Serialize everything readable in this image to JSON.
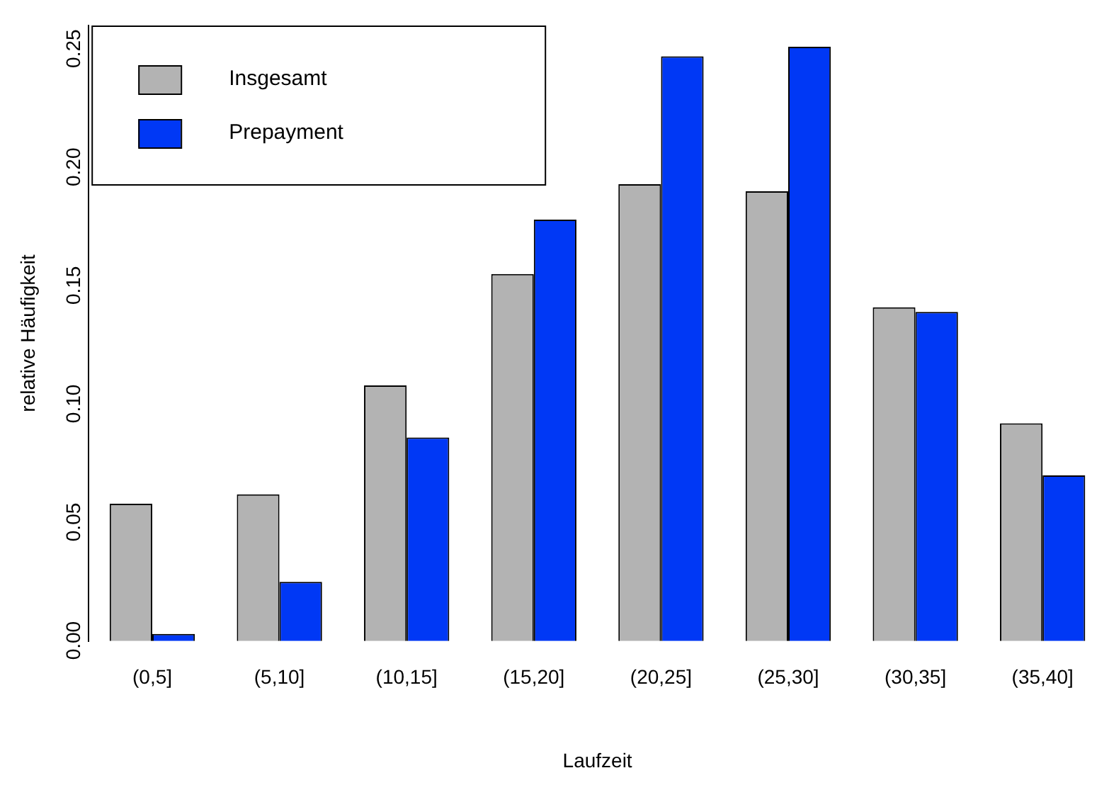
{
  "chart_data": {
    "type": "bar",
    "xlabel": "Laufzeit",
    "ylabel": "relative Häufigkeit",
    "categories": [
      "(0,5]",
      "(5,10]",
      "(10,15]",
      "(15,20]",
      "(20,25]",
      "(25,30]",
      "(30,35]",
      "(35,40]"
    ],
    "series": [
      {
        "name": "Insgesamt",
        "color": "#b3b3b3",
        "values": [
          0.058,
          0.062,
          0.108,
          0.155,
          0.193,
          0.19,
          0.141,
          0.092
        ]
      },
      {
        "name": "Prepayment",
        "color": "#0038f5",
        "values": [
          0.003,
          0.025,
          0.086,
          0.178,
          0.247,
          0.251,
          0.139,
          0.07
        ]
      }
    ],
    "ylim": [
      0,
      0.26
    ],
    "yticks": [
      {
        "value": 0,
        "label": "0.00"
      },
      {
        "value": 0.05,
        "label": "0.05"
      },
      {
        "value": 0.1,
        "label": "0.10"
      },
      {
        "value": 0.15,
        "label": "0.15"
      },
      {
        "value": 0.2,
        "label": "0.20"
      },
      {
        "value": 0.25,
        "label": "0.25"
      }
    ],
    "grid": false,
    "legend": "top left"
  }
}
